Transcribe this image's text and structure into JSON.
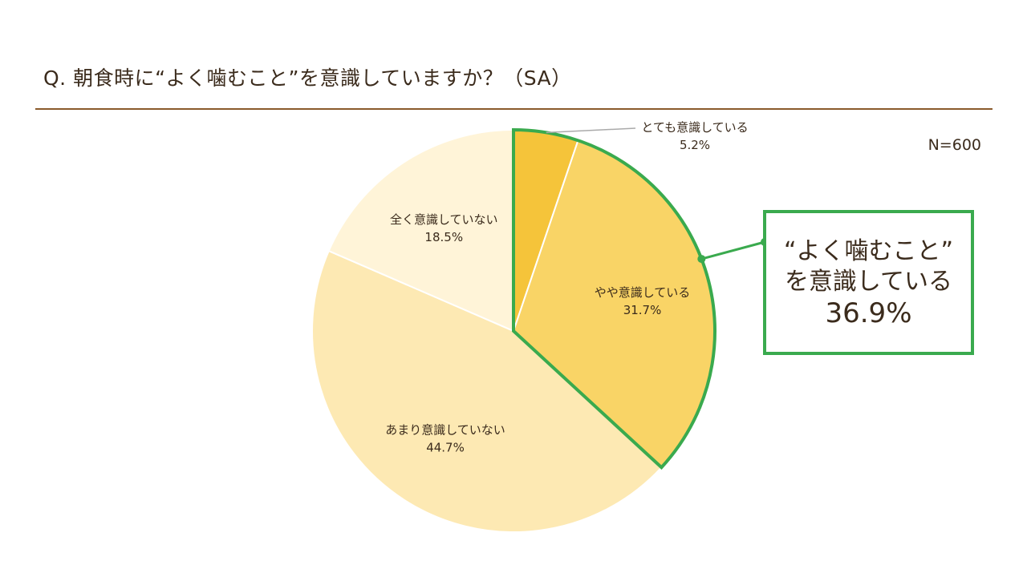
{
  "header": {
    "title": "Q.  朝食時に“よく噛むこと”を意識していますか？（SA）",
    "sample_size": "N=600"
  },
  "callout": {
    "line1": "“よく噛むこと”",
    "line2": "を意識している",
    "value": "36.9%",
    "border_color": "#3aaa4e"
  },
  "chart_data": {
    "type": "pie",
    "title": "Q.  朝食時に“よく噛むこと”を意識していますか？（SA）",
    "note": "N=600",
    "slices": [
      {
        "label": "とても意識している",
        "value": 5.2,
        "display": "5.2%",
        "color": "#f5c43a"
      },
      {
        "label": "やや意識している",
        "value": 31.7,
        "display": "31.7%",
        "color": "#f9d466"
      },
      {
        "label": "あまり意識していない",
        "value": 44.7,
        "display": "44.7%",
        "color": "#fde9b3"
      },
      {
        "label": "全く意識していない",
        "value": 18.5,
        "display": "18.5%",
        "color": "#fff4d8"
      }
    ],
    "highlight": {
      "slices": [
        "とても意識している",
        "やや意識している"
      ],
      "total": "36.9%",
      "color": "#3aaa4e"
    }
  }
}
